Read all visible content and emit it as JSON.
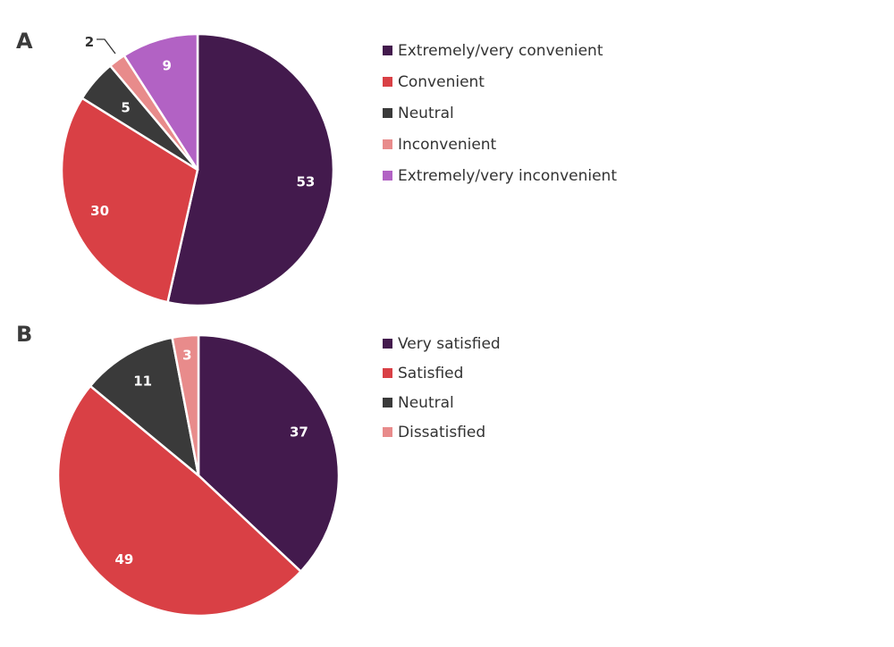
{
  "chart_data": [
    {
      "type": "pie",
      "panel": "A",
      "title": "",
      "categories": [
        "Extremely/very convenient",
        "Convenient",
        "Neutral",
        "Inconvenient",
        "Extremely/very inconvenient"
      ],
      "values": [
        53,
        30,
        5,
        2,
        9
      ],
      "data_labels": [
        "53",
        "30",
        "5",
        "2",
        "9"
      ],
      "colors": [
        "#431a4d",
        "#d94045",
        "#3a3a3a",
        "#e88b8b",
        "#b262c4"
      ],
      "label_colors": [
        "#ffffff",
        "#ffffff",
        "#ffffff",
        "#333333",
        "#ffffff"
      ],
      "callout": [
        false,
        false,
        false,
        true,
        false
      ],
      "start": "12 o'clock",
      "direction": "clockwise",
      "legend": {
        "position": "right",
        "entries": [
          "Extremely/very convenient",
          "Convenient",
          "Neutral",
          "Inconvenient",
          "Extremely/very inconvenient"
        ]
      }
    },
    {
      "type": "pie",
      "panel": "B",
      "title": "",
      "categories": [
        "Very satisfied",
        "Satisfied",
        "Neutral",
        "Dissatisfied"
      ],
      "values": [
        37,
        49,
        11,
        3
      ],
      "data_labels": [
        "37",
        "49",
        "11",
        "3"
      ],
      "colors": [
        "#431a4d",
        "#d94045",
        "#3a3a3a",
        "#e88b8b"
      ],
      "label_colors": [
        "#ffffff",
        "#ffffff",
        "#ffffff",
        "#ffffff"
      ],
      "callout": [
        false,
        false,
        false,
        false
      ],
      "start": "12 o'clock",
      "direction": "clockwise",
      "legend": {
        "position": "right",
        "entries": [
          "Very satisfied",
          "Satisfied",
          "Neutral",
          "Dissatisfied"
        ]
      }
    }
  ]
}
